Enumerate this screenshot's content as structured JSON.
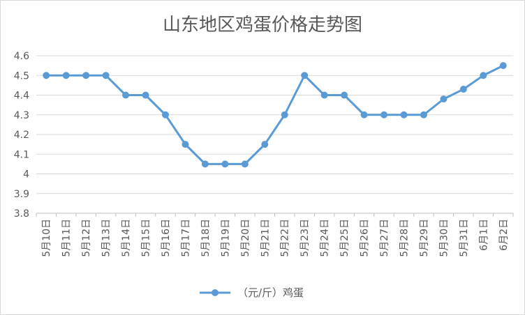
{
  "chart_data": {
    "type": "line",
    "title": "山东地区鸡蛋价格走势图",
    "categories": [
      "5月10日",
      "5月11日",
      "5月12日",
      "5月13日",
      "5月14日",
      "5月15日",
      "5月16日",
      "5月17日",
      "5月18日",
      "5月19日",
      "5月20日",
      "5月21日",
      "5月22日",
      "5月23日",
      "5月24日",
      "5月25日",
      "5月26日",
      "5月27日",
      "5月28日",
      "5月29日",
      "5月30日",
      "5月31日",
      "6月1日",
      "6月2日"
    ],
    "series": [
      {
        "name": "（元/斤）鸡蛋",
        "values": [
          4.5,
          4.5,
          4.5,
          4.5,
          4.4,
          4.4,
          4.3,
          4.15,
          4.05,
          4.05,
          4.05,
          4.15,
          4.3,
          4.5,
          4.4,
          4.4,
          4.3,
          4.3,
          4.3,
          4.3,
          4.38,
          4.43,
          4.5,
          4.55
        ]
      }
    ],
    "ylim": [
      3.8,
      4.6
    ],
    "yticks": [
      "3.8",
      "3.9",
      "4",
      "4.1",
      "4.2",
      "4.3",
      "4.4",
      "4.5",
      "4.6"
    ],
    "grid": true,
    "legend": "bottom",
    "color": "#5b9bd5"
  }
}
